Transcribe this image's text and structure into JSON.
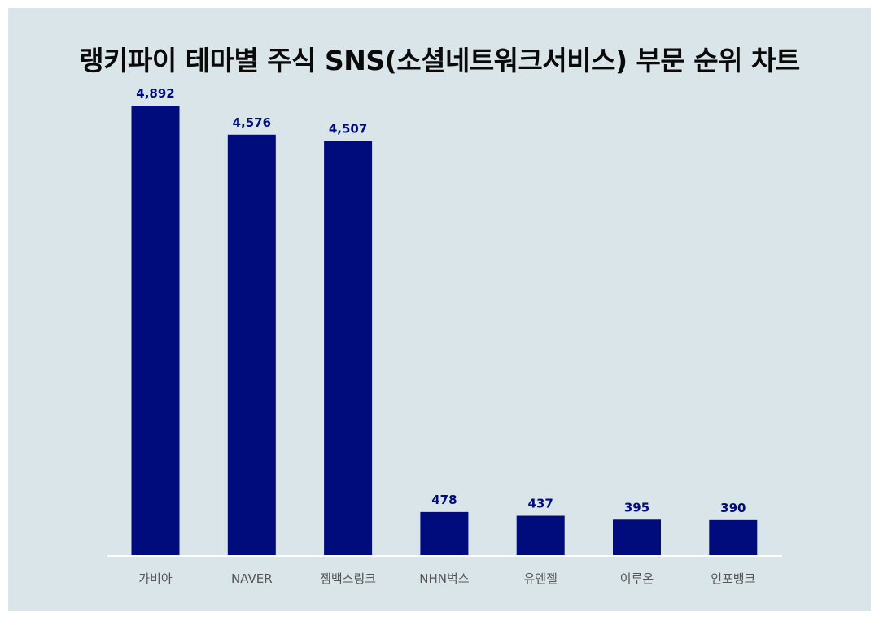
{
  "title": "랭키파이 테마별 주식 SNS(소셜네트워크서비스) 부문 순위 차트",
  "colors": {
    "background": "#dae5ea",
    "bar": "#000c7c",
    "value_label": "#000c7c",
    "category_label": "#555555",
    "axis_line": "#ffffff"
  },
  "chart_data": {
    "type": "bar",
    "title": "랭키파이 테마별 주식 SNS(소셜네트워크서비스) 부문 순위 차트",
    "categories": [
      "가비아",
      "NAVER",
      "젬백스링크",
      "NHN벅스",
      "유엔젤",
      "이루온",
      "인포뱅크"
    ],
    "values": [
      4892,
      4576,
      4507,
      478,
      437,
      395,
      390
    ],
    "value_labels": [
      "4,892",
      "4,576",
      "4,507",
      "478",
      "437",
      "395",
      "390"
    ],
    "xlabel": "",
    "ylabel": "",
    "ylim": [
      0,
      4892
    ],
    "grid": false,
    "legend": "none"
  }
}
